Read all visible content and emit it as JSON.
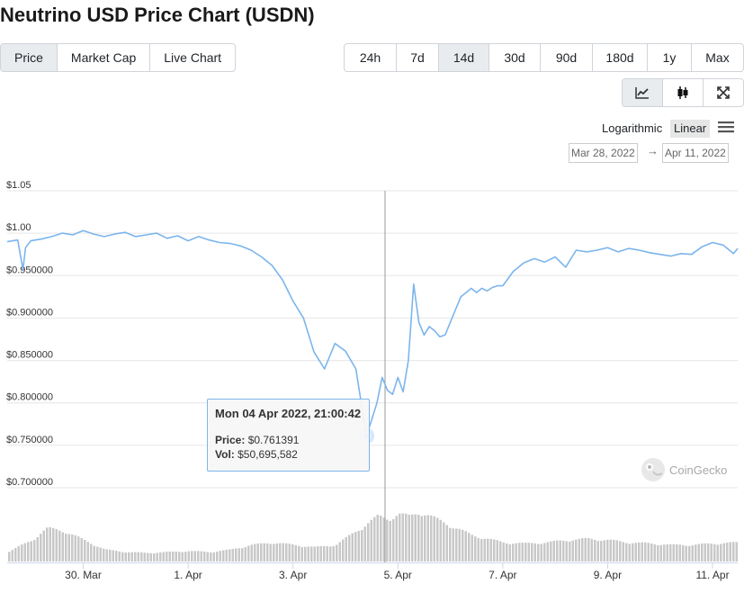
{
  "page": {
    "title": "Neutrino USD Price Chart (USDN)"
  },
  "metric_tabs": [
    {
      "label": "Price",
      "active": true
    },
    {
      "label": "Market Cap",
      "active": false
    },
    {
      "label": "Live Chart",
      "active": false
    }
  ],
  "range_tabs": [
    {
      "label": "24h",
      "active": false
    },
    {
      "label": "7d",
      "active": false
    },
    {
      "label": "14d",
      "active": true
    },
    {
      "label": "30d",
      "active": false
    },
    {
      "label": "90d",
      "active": false
    },
    {
      "label": "180d",
      "active": false
    },
    {
      "label": "1y",
      "active": false
    },
    {
      "label": "Max",
      "active": false
    }
  ],
  "view_tabs": [
    {
      "icon": "line-chart-icon",
      "active": true
    },
    {
      "icon": "candlestick-icon",
      "active": false
    },
    {
      "icon": "fullscreen-icon",
      "active": false
    }
  ],
  "scale": {
    "log_label": "Logarithmic",
    "linear_label": "Linear",
    "selected": "Linear"
  },
  "date_range": {
    "from": "Mar 28, 2022",
    "arrow": "→",
    "to": "Apr 11, 2022"
  },
  "tooltip": {
    "date": "Mon 04 Apr 2022, 21:00:42",
    "price_label": "Price:",
    "price_value": "$0.761391",
    "vol_label": "Vol:",
    "vol_value": "$50,695,582"
  },
  "watermark": "CoinGecko",
  "colors": {
    "line": "#7cb5ec",
    "volume": "#c8c8c8",
    "grid": "#e6e6e6",
    "accent": "#7cb5ec"
  },
  "chart_data": {
    "type": "line",
    "title": "Neutrino USD Price Chart (USDN)",
    "ylim": [
      0.7,
      1.05
    ],
    "y_tick_labels": [
      "$1.05",
      "$1.00",
      "$0.950000",
      "$0.900000",
      "$0.850000",
      "$0.800000",
      "$0.750000",
      "$0.700000"
    ],
    "y_ticks": [
      1.05,
      1.0,
      0.95,
      0.9,
      0.85,
      0.8,
      0.75,
      0.7
    ],
    "x_tick_labels": [
      "30. Mar",
      "1. Apr",
      "3. Apr",
      "5. Apr",
      "7. Apr",
      "9. Apr",
      "11. Apr"
    ],
    "x_ticks": [
      2,
      4,
      6,
      8,
      10,
      12,
      14
    ],
    "xlim": [
      0.55,
      14.48
    ],
    "grid": true,
    "series": [
      {
        "x": [
          0.55,
          0.75,
          0.85,
          0.9,
          1.0,
          1.2,
          1.4,
          1.6,
          1.8,
          2.0,
          2.2,
          2.4,
          2.6,
          2.8,
          3.0,
          3.2,
          3.4,
          3.6,
          3.8,
          4.0,
          4.2,
          4.4,
          4.6,
          4.8,
          5.0,
          5.2,
          5.4,
          5.6,
          5.8,
          6.0,
          6.2,
          6.4,
          6.6,
          6.8,
          7.0,
          7.2,
          7.4,
          7.5,
          7.6,
          7.7,
          7.8,
          7.9,
          8.0,
          8.1,
          8.2,
          8.3,
          8.4,
          8.5,
          8.6,
          8.7,
          8.8,
          8.9,
          9.0,
          9.1,
          9.2,
          9.3,
          9.4,
          9.5,
          9.6,
          9.7,
          9.8,
          9.9,
          10.0,
          10.2,
          10.4,
          10.6,
          10.8,
          11.0,
          11.2,
          11.4,
          11.6,
          11.8,
          12.0,
          12.2,
          12.4,
          12.6,
          12.8,
          13.0,
          13.2,
          13.4,
          13.6,
          13.8,
          14.0,
          14.2,
          14.4,
          14.48
        ],
        "values": [
          0.99,
          0.992,
          0.957,
          0.983,
          0.991,
          0.993,
          0.996,
          1.0,
          0.998,
          1.003,
          0.999,
          0.996,
          0.999,
          1.001,
          0.996,
          0.998,
          1.0,
          0.994,
          0.997,
          0.991,
          0.996,
          0.992,
          0.989,
          0.988,
          0.985,
          0.98,
          0.972,
          0.962,
          0.945,
          0.92,
          0.9,
          0.86,
          0.84,
          0.87,
          0.861,
          0.84,
          0.761,
          0.78,
          0.8,
          0.83,
          0.815,
          0.81,
          0.83,
          0.813,
          0.85,
          0.94,
          0.895,
          0.88,
          0.89,
          0.885,
          0.878,
          0.88,
          0.895,
          0.91,
          0.925,
          0.93,
          0.935,
          0.93,
          0.935,
          0.932,
          0.936,
          0.938,
          0.938,
          0.955,
          0.965,
          0.97,
          0.966,
          0.972,
          0.96,
          0.98,
          0.978,
          0.98,
          0.983,
          0.978,
          0.982,
          0.98,
          0.977,
          0.975,
          0.973,
          0.976,
          0.975,
          0.984,
          0.989,
          0.986,
          0.976,
          0.982
        ]
      },
      {
        "x": [
          0.55,
          1.0,
          1.3,
          1.6,
          2.0,
          2.4,
          2.8,
          3.2,
          3.6,
          4.0,
          4.4,
          4.8,
          5.2,
          5.6,
          6.0,
          6.4,
          6.8,
          7.0,
          7.2,
          7.4,
          7.6,
          7.8,
          8.0,
          8.2,
          8.4,
          8.6,
          8.8,
          9.0,
          9.2,
          9.4,
          9.6,
          9.8,
          10.0,
          10.4,
          10.8,
          11.2,
          11.6,
          12.0,
          12.4,
          12.8,
          13.2,
          13.6,
          14.0,
          14.48
        ],
        "volume_relative": [
          0.2,
          0.45,
          0.7,
          0.65,
          0.45,
          0.25,
          0.2,
          0.18,
          0.2,
          0.22,
          0.2,
          0.25,
          0.35,
          0.4,
          0.35,
          0.3,
          0.35,
          0.5,
          0.65,
          0.8,
          0.95,
          0.9,
          1.0,
          0.95,
          1.05,
          0.95,
          0.85,
          0.75,
          0.65,
          0.55,
          0.5,
          0.45,
          0.4,
          0.38,
          0.4,
          0.45,
          0.48,
          0.45,
          0.4,
          0.38,
          0.35,
          0.35,
          0.38,
          0.4
        ]
      }
    ]
  }
}
